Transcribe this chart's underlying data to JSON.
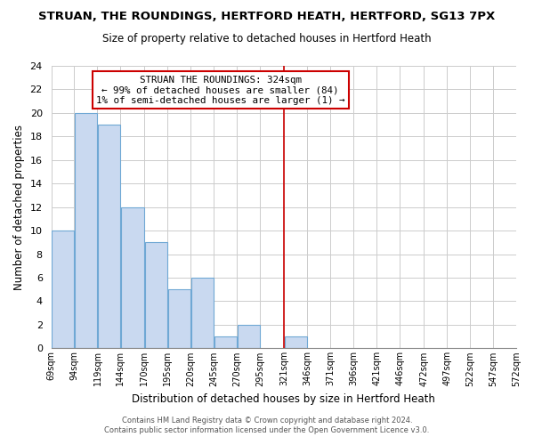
{
  "title": "STRUAN, THE ROUNDINGS, HERTFORD HEATH, HERTFORD, SG13 7PX",
  "subtitle": "Size of property relative to detached houses in Hertford Heath",
  "xlabel": "Distribution of detached houses by size in Hertford Heath",
  "ylabel": "Number of detached properties",
  "bar_left_edges": [
    69,
    94,
    119,
    144,
    170,
    195,
    220,
    245,
    270,
    295,
    321,
    346,
    371,
    396,
    421,
    446,
    472,
    497,
    522,
    547
  ],
  "bar_widths": [
    25,
    25,
    25,
    26,
    25,
    25,
    25,
    25,
    25,
    26,
    25,
    25,
    25,
    25,
    25,
    26,
    25,
    25,
    25,
    25
  ],
  "bar_heights": [
    10,
    20,
    19,
    12,
    9,
    5,
    6,
    1,
    2,
    0,
    1,
    0,
    0,
    0,
    0,
    0,
    0,
    0,
    0,
    0
  ],
  "bar_color": "#c9d9f0",
  "bar_edgecolor": "#6fa8d4",
  "xlim_left": 69,
  "xlim_right": 572,
  "ylim_top": 24,
  "yticks": [
    0,
    2,
    4,
    6,
    8,
    10,
    12,
    14,
    16,
    18,
    20,
    22,
    24
  ],
  "xtick_labels": [
    "69sqm",
    "94sqm",
    "119sqm",
    "144sqm",
    "170sqm",
    "195sqm",
    "220sqm",
    "245sqm",
    "270sqm",
    "295sqm",
    "321sqm",
    "346sqm",
    "371sqm",
    "396sqm",
    "421sqm",
    "446sqm",
    "472sqm",
    "497sqm",
    "522sqm",
    "547sqm",
    "572sqm"
  ],
  "xtick_positions": [
    69,
    94,
    119,
    144,
    170,
    195,
    220,
    245,
    270,
    295,
    321,
    346,
    371,
    396,
    421,
    446,
    472,
    497,
    522,
    547,
    572
  ],
  "vline_x": 321,
  "vline_color": "#cc0000",
  "annotation_title": "STRUAN THE ROUNDINGS: 324sqm",
  "annotation_line1": "← 99% of detached houses are smaller (84)",
  "annotation_line2": "1% of semi-detached houses are larger (1) →",
  "footer_line1": "Contains HM Land Registry data © Crown copyright and database right 2024.",
  "footer_line2": "Contains public sector information licensed under the Open Government Licence v3.0.",
  "background_color": "#ffffff",
  "grid_color": "#cccccc"
}
